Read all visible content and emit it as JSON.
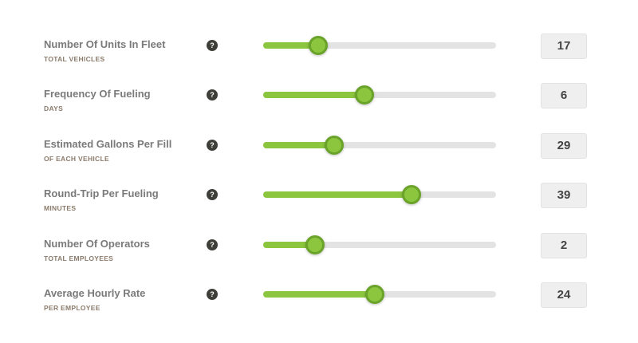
{
  "colors": {
    "accent": "#8cc63f",
    "track": "#e3e3e3",
    "help_icon": "#3f3f3a"
  },
  "help_icon": {
    "name": "question-circle-icon",
    "glyph": "?"
  },
  "rows": [
    {
      "title": "Number Of Units In Fleet",
      "subtitle": "TOTAL VEHICLES",
      "value": "17",
      "slider_percent": 23.6
    },
    {
      "title": "Frequency Of Fueling",
      "subtitle": "DAYS",
      "value": "6",
      "slider_percent": 43.5
    },
    {
      "title": "Estimated Gallons Per Fill",
      "subtitle": "OF EACH VEHICLE",
      "value": "29",
      "slider_percent": 30.5
    },
    {
      "title": "Round-Trip Per Fueling",
      "subtitle": "MINUTES",
      "value": "39",
      "slider_percent": 63.7
    },
    {
      "title": "Number Of Operators",
      "subtitle": "TOTAL EMPLOYEES",
      "value": "2",
      "slider_percent": 22.3
    },
    {
      "title": "Average Hourly Rate",
      "subtitle": "PER EMPLOYEE",
      "value": "24",
      "slider_percent": 47.9
    }
  ]
}
